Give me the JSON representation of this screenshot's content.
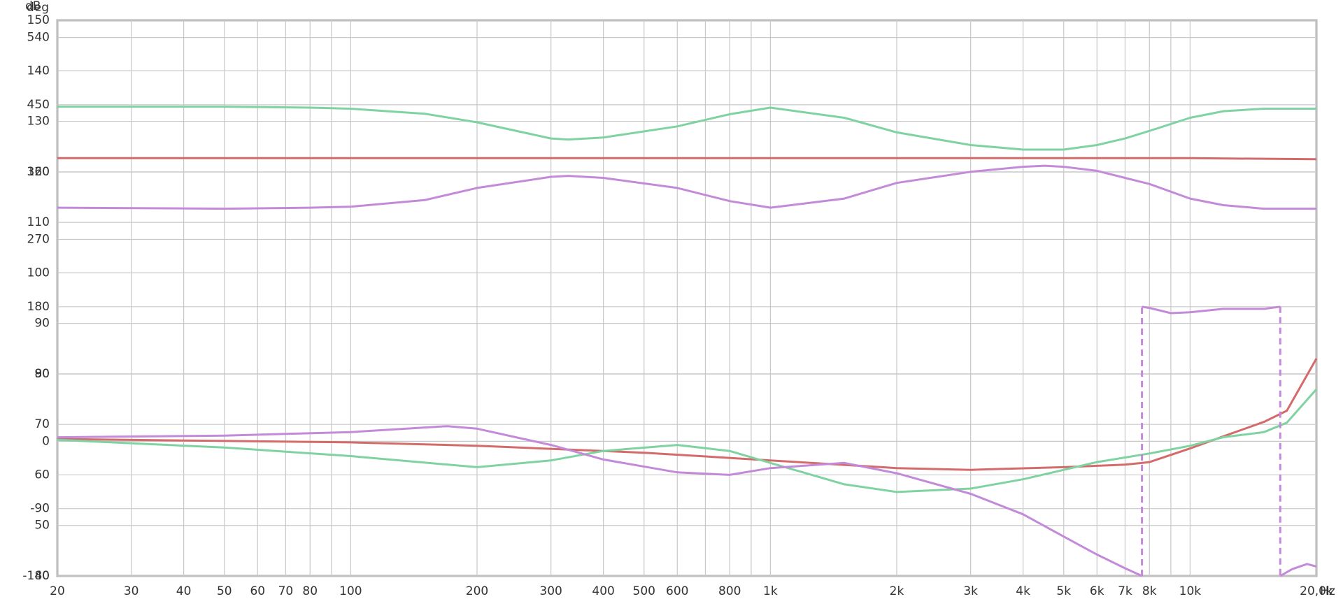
{
  "chart_data": {
    "type": "line",
    "ylabel": "dB",
    "y2label": "deg",
    "xlabel": "Hz",
    "xscale": "log",
    "grid": true,
    "xlim": [
      20,
      20000
    ],
    "xticks": [
      20,
      30,
      40,
      50,
      60,
      70,
      80,
      100,
      200,
      300,
      400,
      500,
      600,
      800,
      {
        "value": 1000,
        "label": "1k"
      },
      {
        "value": 2000,
        "label": "2k"
      },
      {
        "value": 3000,
        "label": "3k"
      },
      {
        "value": 4000,
        "label": "4k"
      },
      {
        "value": 5000,
        "label": "5k"
      },
      {
        "value": 6000,
        "label": "6k"
      },
      {
        "value": 7000,
        "label": "7k"
      },
      {
        "value": 8000,
        "label": "8k"
      },
      {
        "value": 10000,
        "label": "10k"
      },
      {
        "value": 20000,
        "label": "20,0k"
      }
    ],
    "x_minor_grid": [
      90,
      700,
      900,
      9000
    ],
    "ylim": [
      40,
      150
    ],
    "yticks": [
      40,
      50,
      60,
      70,
      80,
      90,
      100,
      110,
      120,
      130,
      140,
      150
    ],
    "y2lim": [
      -180,
      563
    ],
    "y2ticks": [
      -180,
      -90,
      0,
      90,
      180,
      270,
      360,
      450,
      540
    ],
    "series": [
      {
        "color": "#7fd3a1",
        "axis": "y",
        "x": [
          20,
          30,
          50,
          80,
          100,
          150,
          200,
          300,
          330,
          400,
          600,
          800,
          1000,
          1500,
          2000,
          3000,
          4000,
          5000,
          6000,
          7000,
          8000,
          10000,
          12000,
          15000,
          20000
        ],
        "values": [
          132.9,
          132.9,
          132.9,
          132.7,
          132.5,
          131.5,
          129.8,
          126.6,
          126.4,
          126.8,
          129.0,
          131.4,
          132.7,
          130.7,
          127.8,
          125.3,
          124.4,
          124.4,
          125.3,
          126.6,
          128.1,
          130.7,
          132.0,
          132.5,
          132.5
        ]
      },
      {
        "color": "#d46b6b",
        "axis": "y",
        "x": [
          20,
          100,
          1000,
          10000,
          20000
        ],
        "values": [
          122.7,
          122.7,
          122.7,
          122.7,
          122.5
        ]
      },
      {
        "color": "#c38ad9",
        "axis": "y",
        "x": [
          20,
          50,
          80,
          100,
          150,
          200,
          300,
          330,
          400,
          600,
          800,
          1000,
          1500,
          2000,
          3000,
          4000,
          4500,
          5000,
          6000,
          7000,
          8000,
          10000,
          12000,
          15000,
          20000
        ],
        "values": [
          112.9,
          112.7,
          112.9,
          113.1,
          114.4,
          116.8,
          119.0,
          119.2,
          118.8,
          116.8,
          114.2,
          112.9,
          114.7,
          117.8,
          120.0,
          121.0,
          121.2,
          121.0,
          120.2,
          118.8,
          117.6,
          114.7,
          113.4,
          112.7,
          112.7
        ]
      },
      {
        "color": "#d46b6b",
        "axis": "y2",
        "x": [
          20,
          100,
          200,
          500,
          1000,
          2000,
          3000,
          5000,
          7000,
          7700,
          8000,
          10000,
          12000,
          15000,
          17000,
          20000
        ],
        "values": [
          3.1,
          -1.4,
          -6.0,
          -15.2,
          -25.5,
          -35.8,
          -38.1,
          -34.6,
          -31.2,
          -28.9,
          -27.8,
          -9.5,
          6.6,
          26.0,
          40.9,
          110.7
        ]
      },
      {
        "color": "#7fd3a1",
        "axis": "y2",
        "x": [
          20,
          50,
          100,
          200,
          300,
          400,
          600,
          800,
          1000,
          1500,
          2000,
          3000,
          4000,
          5000,
          6000,
          8000,
          10000,
          12000,
          15000,
          17000,
          20000
        ],
        "values": [
          2.0,
          -8.3,
          -19.7,
          -34.6,
          -25.5,
          -12.9,
          -4.9,
          -12.9,
          -28.9,
          -57.5,
          -67.8,
          -63.2,
          -50.7,
          -38.1,
          -27.8,
          -16.3,
          -6.0,
          5.5,
          12.3,
          24.9,
          69.6
        ]
      },
      {
        "color": "#c38ad9",
        "axis": "y2",
        "x": [
          20,
          50,
          100,
          170,
          200,
          300,
          400,
          600,
          800,
          1000,
          1500,
          2000,
          3000,
          4000,
          5000,
          6000,
          7000,
          7680,
          7680,
          8000,
          9000,
          10000,
          12000,
          15000,
          16400,
          16400,
          17500,
          19000,
          20000
        ],
        "values": [
          5.4,
          7.7,
          12.3,
          20.3,
          16.9,
          -4.9,
          -24.3,
          -41.5,
          -44.9,
          -35.8,
          -28.9,
          -42.7,
          -70.2,
          -97.6,
          -127.4,
          -151.4,
          -169.7,
          -180,
          180,
          178.3,
          171.4,
          172.6,
          177.1,
          177.1,
          180,
          -180,
          -170.9,
          -164.0,
          -167.4
        ]
      }
    ]
  }
}
